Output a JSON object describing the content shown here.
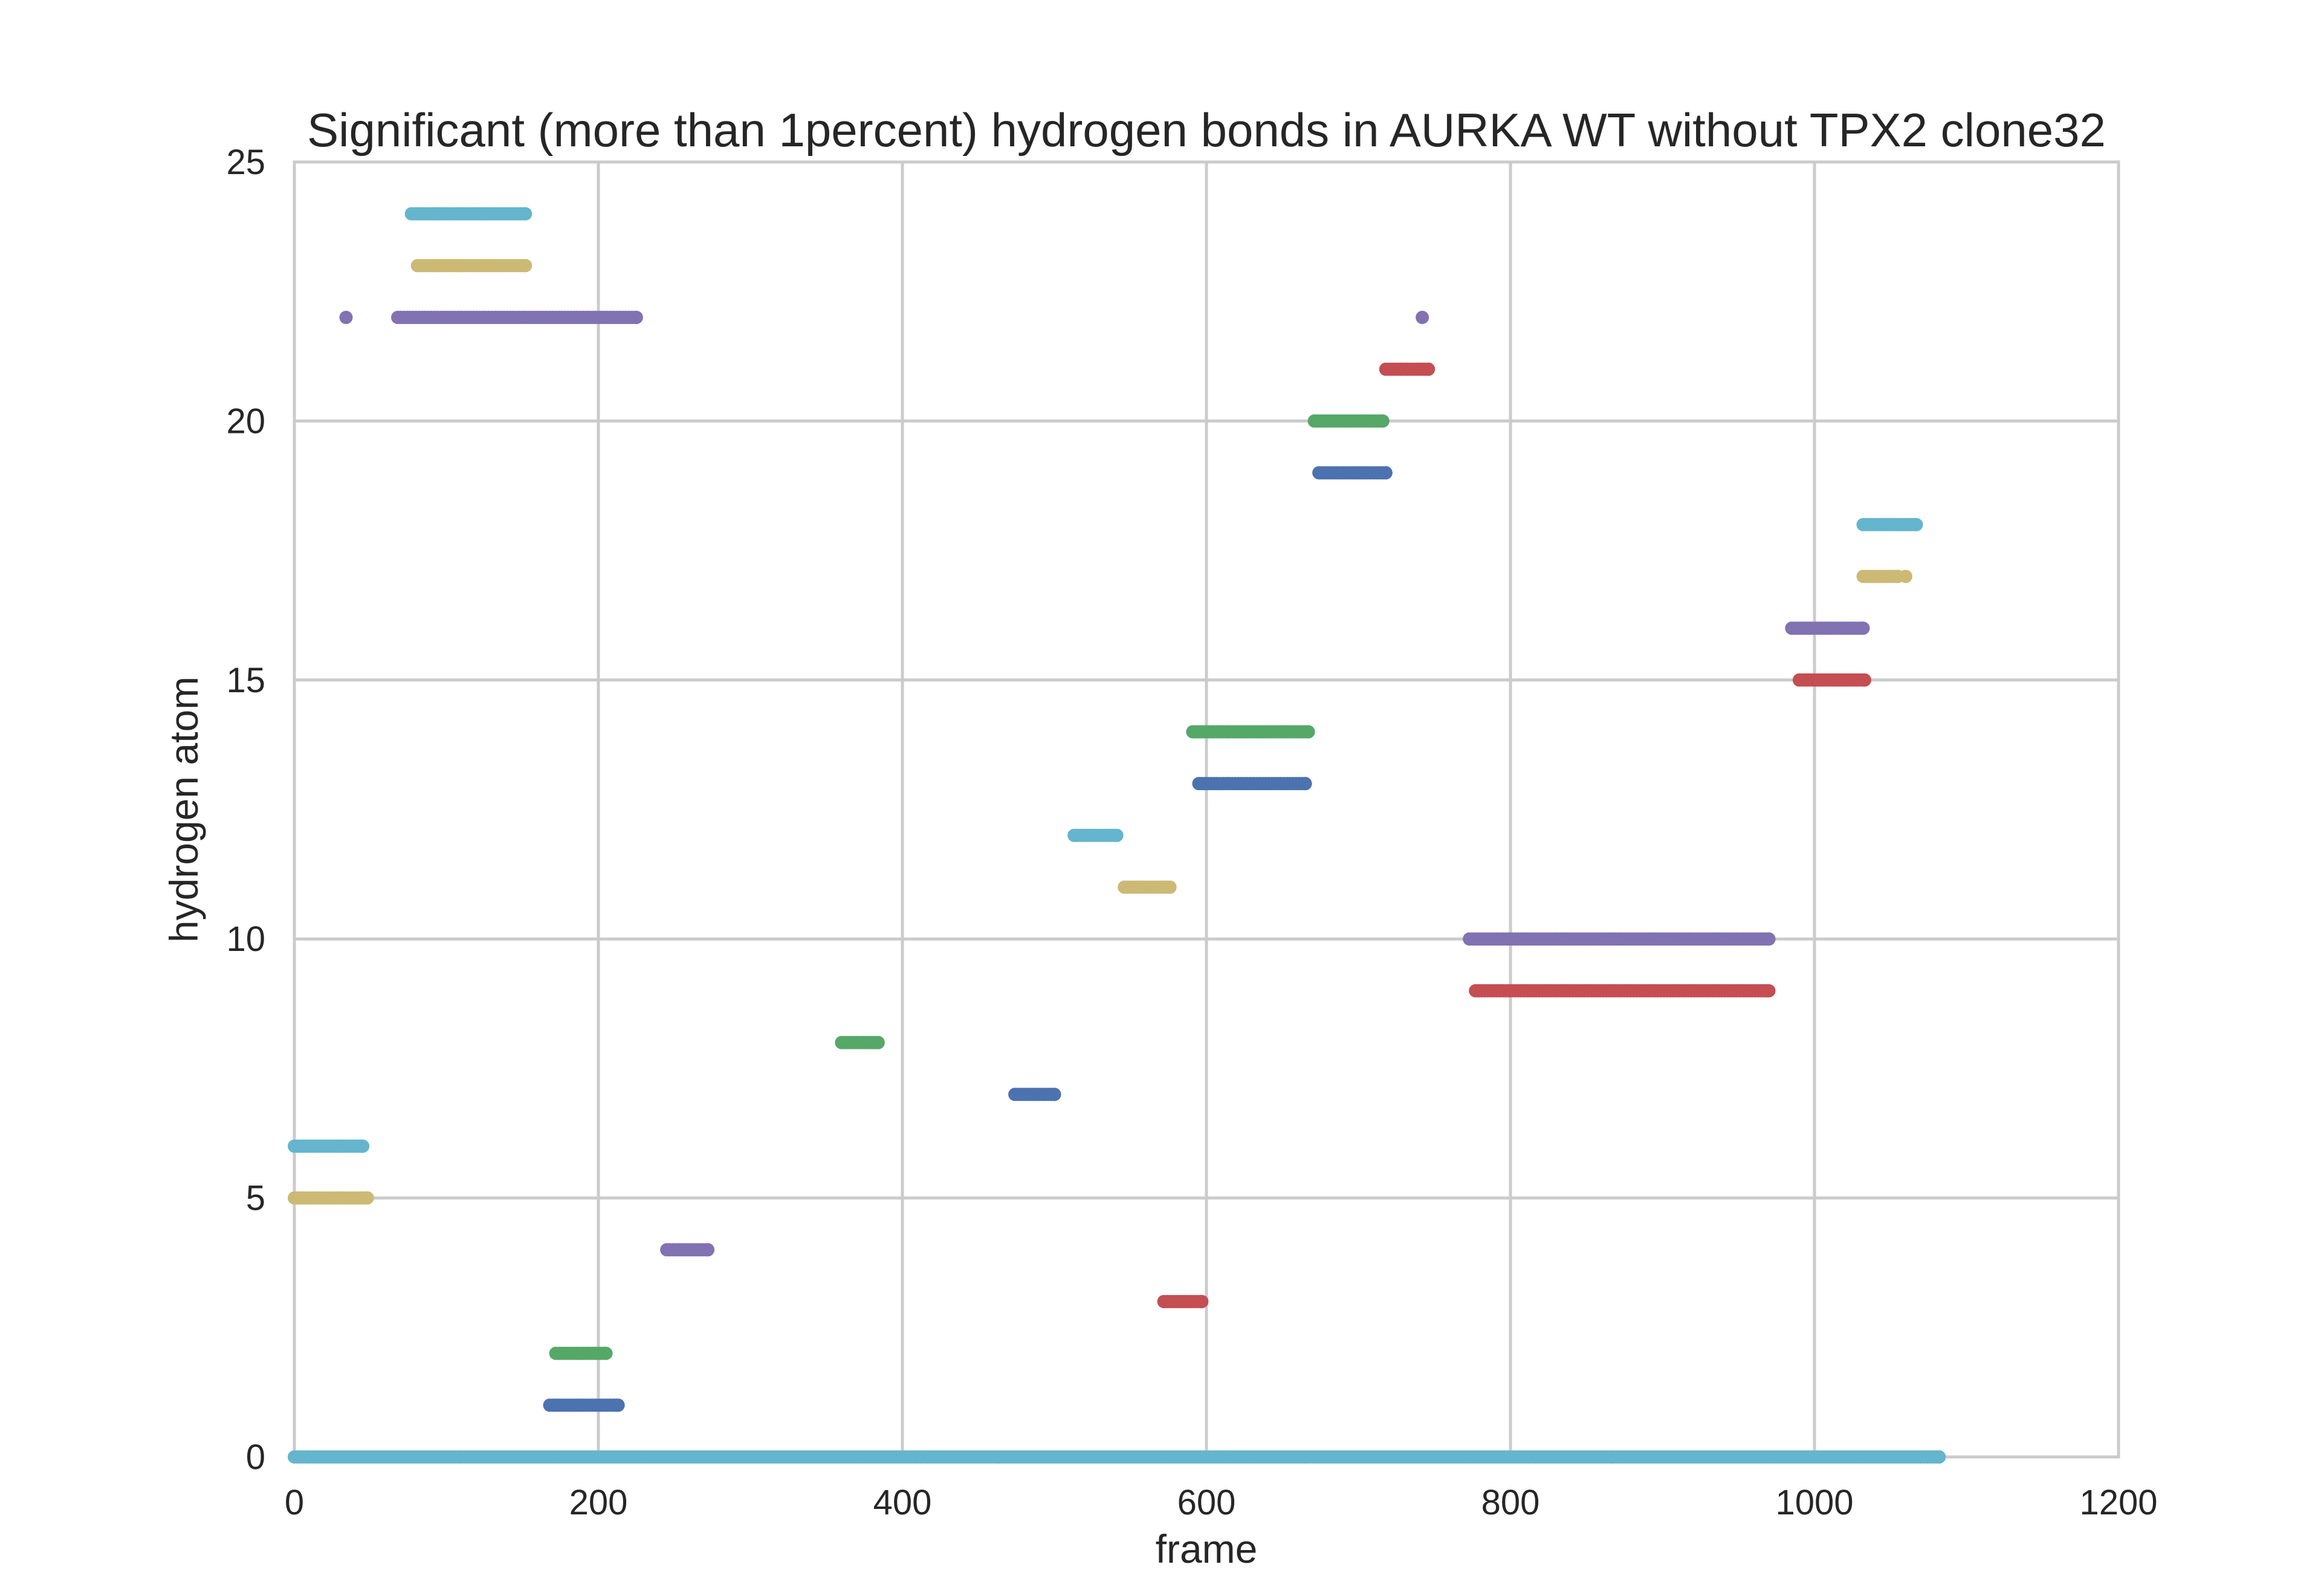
{
  "chart_data": {
    "type": "scatter",
    "title": "Significant (more than 1percent) hydrogen bonds in AURKA WT without TPX2 clone32",
    "xlabel": "frame",
    "ylabel": "hydrogen atom",
    "xlim": [
      0,
      1200
    ],
    "ylim": [
      0,
      25
    ],
    "xticks": [
      "0",
      "200",
      "400",
      "600",
      "800",
      "1000",
      "1200"
    ],
    "yticks": [
      "0",
      "5",
      "10",
      "15",
      "20",
      "25"
    ],
    "grid": true,
    "legend": "none",
    "palette": [
      "#4c72b0",
      "#55a868",
      "#c44e52",
      "#8172b2",
      "#ccb974",
      "#64b5cd"
    ],
    "series": [
      {
        "y": 0,
        "color": "#64b5cd",
        "segments": [
          [
            0,
            1082
          ]
        ]
      },
      {
        "y": 1,
        "color": "#4c72b0",
        "segments": [
          [
            168,
            213
          ]
        ]
      },
      {
        "y": 2,
        "color": "#55a868",
        "segments": [
          [
            172,
            205
          ]
        ]
      },
      {
        "y": 3,
        "color": "#c44e52",
        "segments": [
          [
            572,
            597
          ]
        ]
      },
      {
        "y": 4,
        "color": "#8172b2",
        "segments": [
          [
            245,
            272
          ]
        ]
      },
      {
        "y": 5,
        "color": "#ccb974",
        "segments": [
          [
            0,
            48
          ]
        ]
      },
      {
        "y": 6,
        "color": "#64b5cd",
        "segments": [
          [
            0,
            45
          ]
        ]
      },
      {
        "y": 7,
        "color": "#4c72b0",
        "segments": [
          [
            474,
            500
          ]
        ]
      },
      {
        "y": 8,
        "color": "#55a868",
        "segments": [
          [
            360,
            384
          ]
        ]
      },
      {
        "y": 9,
        "color": "#c44e52",
        "segments": [
          [
            777,
            970
          ]
        ]
      },
      {
        "y": 10,
        "color": "#8172b2",
        "segments": [
          [
            773,
            970
          ]
        ]
      },
      {
        "y": 11,
        "color": "#ccb974",
        "segments": [
          [
            546,
            576
          ]
        ]
      },
      {
        "y": 12,
        "color": "#64b5cd",
        "segments": [
          [
            513,
            541
          ]
        ]
      },
      {
        "y": 13,
        "color": "#4c72b0",
        "segments": [
          [
            595,
            665
          ]
        ]
      },
      {
        "y": 14,
        "color": "#55a868",
        "segments": [
          [
            591,
            667
          ]
        ]
      },
      {
        "y": 15,
        "color": "#c44e52",
        "segments": [
          [
            990,
            1033
          ]
        ]
      },
      {
        "y": 16,
        "color": "#8172b2",
        "segments": [
          [
            985,
            1032
          ]
        ]
      },
      {
        "y": 17,
        "color": "#ccb974",
        "segments": [
          [
            1032,
            1055
          ],
          [
            1060,
            1060
          ]
        ]
      },
      {
        "y": 18,
        "color": "#64b5cd",
        "segments": [
          [
            1032,
            1067
          ]
        ]
      },
      {
        "y": 19,
        "color": "#4c72b0",
        "segments": [
          [
            674,
            718
          ]
        ]
      },
      {
        "y": 20,
        "color": "#55a868",
        "segments": [
          [
            671,
            716
          ]
        ]
      },
      {
        "y": 21,
        "color": "#c44e52",
        "segments": [
          [
            718,
            746
          ]
        ]
      },
      {
        "y": 22,
        "color": "#8172b2",
        "segments": [
          [
            34,
            34
          ],
          [
            68,
            225
          ],
          [
            742,
            742
          ]
        ]
      },
      {
        "y": 23,
        "color": "#ccb974",
        "segments": [
          [
            81,
            152
          ]
        ]
      },
      {
        "y": 24,
        "color": "#64b5cd",
        "segments": [
          [
            77,
            152
          ]
        ]
      }
    ]
  }
}
